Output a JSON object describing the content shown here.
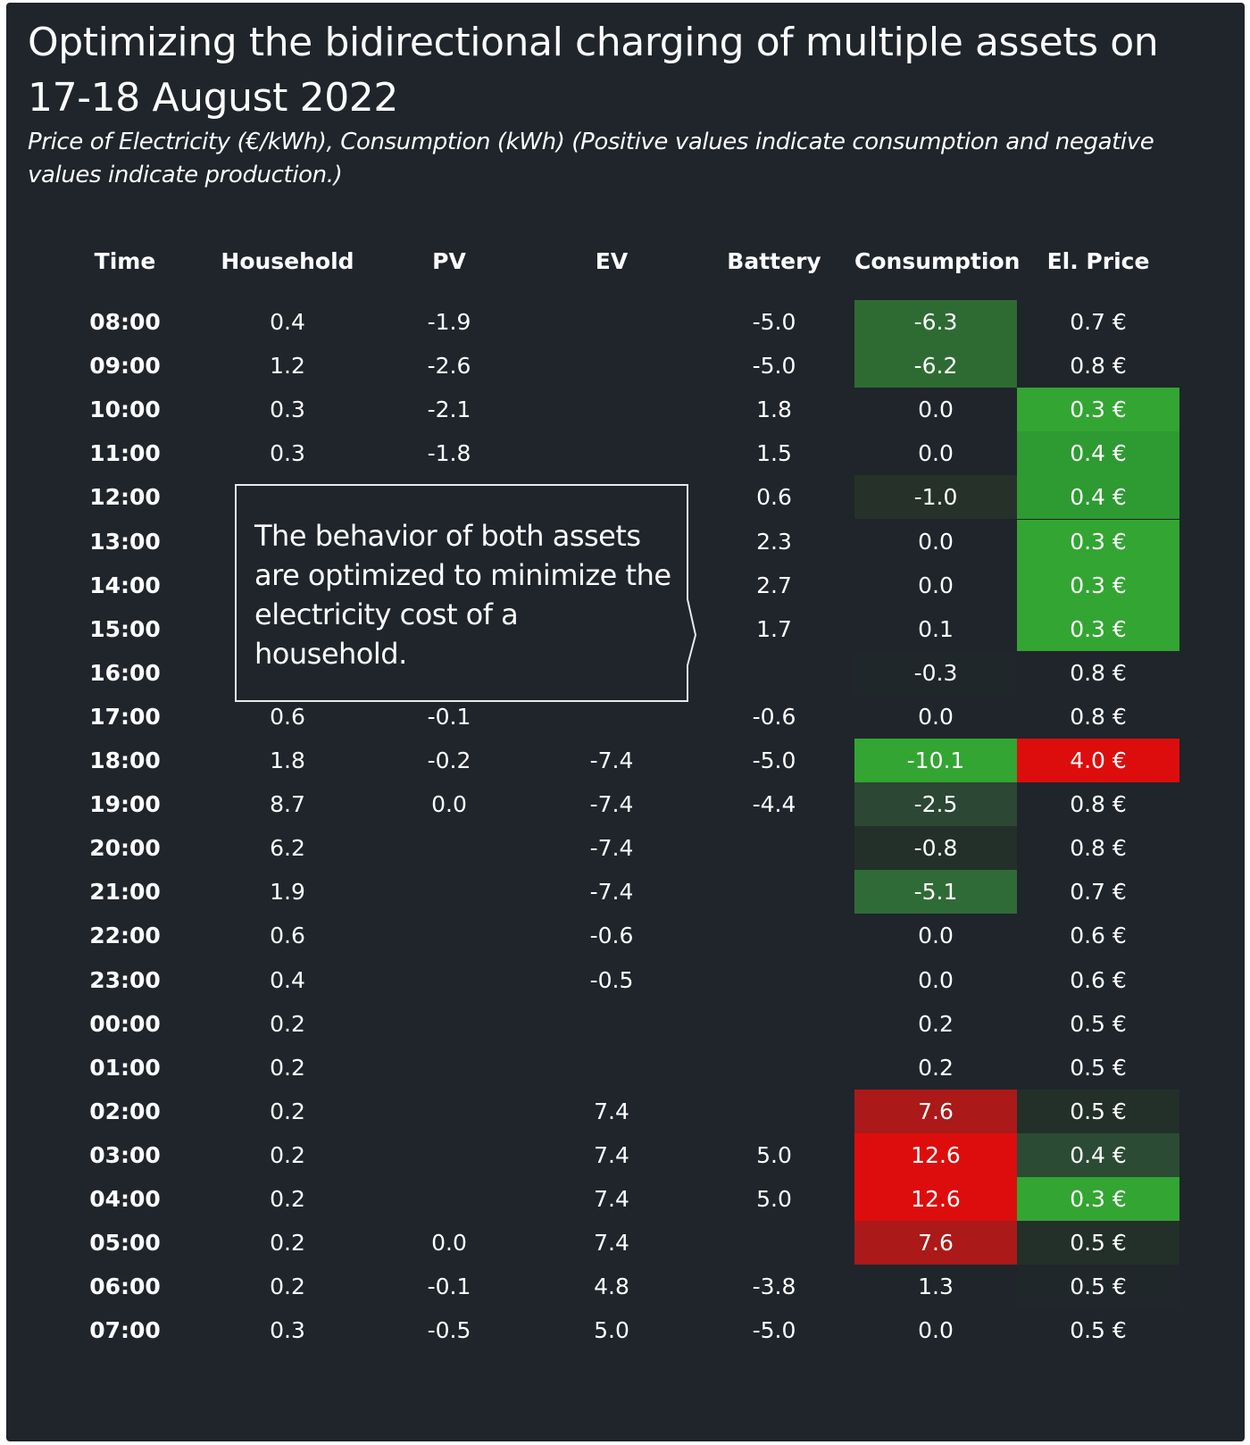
{
  "title": "Optimizing the bidirectional charging of multiple assets on 17-18 August 2022",
  "subtitle": "Price of Electricity (€/kWh), Consumption (kWh) (Positive values indicate consumption and negative values indicate production.)",
  "annotation": "The behavior of both assets are optimized to minimize the electricity cost of a household.",
  "colors": {
    "background": "#1f252b",
    "text": "#ffffff",
    "green_scale_max": "#33a532",
    "red_scale_max": "#dd0d0d"
  },
  "chart_data": {
    "type": "table",
    "title": "Optimizing the bidirectional charging of multiple assets on 17-18 August 2022",
    "columns": [
      "Time",
      "Household",
      "PV",
      "EV",
      "Battery",
      "Consumption",
      "El. Price"
    ],
    "rows": [
      [
        "08:00",
        "0.4",
        "-1.9",
        "",
        "-5.0",
        "-6.3",
        "0.7 €"
      ],
      [
        "09:00",
        "1.2",
        "-2.6",
        "",
        "-5.0",
        "-6.2",
        "0.8 €"
      ],
      [
        "10:00",
        "0.3",
        "-2.1",
        "",
        "1.8",
        "0.0",
        "0.3 €"
      ],
      [
        "11:00",
        "0.3",
        "-1.8",
        "",
        "1.5",
        "0.0",
        "0.4 €"
      ],
      [
        "12:00",
        "",
        "",
        "",
        "0.6",
        "-1.0",
        "0.4 €"
      ],
      [
        "13:00",
        "",
        "",
        "",
        "2.3",
        "0.0",
        "0.3 €"
      ],
      [
        "14:00",
        "",
        "",
        "",
        "2.7",
        "0.0",
        "0.3 €"
      ],
      [
        "15:00",
        "",
        "",
        "",
        "1.7",
        "0.1",
        "0.3 €"
      ],
      [
        "16:00",
        "",
        "",
        "",
        "",
        "-0.3",
        "0.8 €"
      ],
      [
        "17:00",
        "0.6",
        "-0.1",
        "",
        "-0.6",
        "0.0",
        "0.8 €"
      ],
      [
        "18:00",
        "1.8",
        "-0.2",
        "-7.4",
        "-5.0",
        "-10.1",
        "4.0 €"
      ],
      [
        "19:00",
        "8.7",
        "0.0",
        "-7.4",
        "-4.4",
        "-2.5",
        "0.8 €"
      ],
      [
        "20:00",
        "6.2",
        "",
        "-7.4",
        "",
        "-0.8",
        "0.8 €"
      ],
      [
        "21:00",
        "1.9",
        "",
        "-7.4",
        "",
        "-5.1",
        "0.7 €"
      ],
      [
        "22:00",
        "0.6",
        "",
        "-0.6",
        "",
        "0.0",
        "0.6 €"
      ],
      [
        "23:00",
        "0.4",
        "",
        "-0.5",
        "",
        "0.0",
        "0.6 €"
      ],
      [
        "00:00",
        "0.2",
        "",
        "",
        "",
        "0.2",
        "0.5 €"
      ],
      [
        "01:00",
        "0.2",
        "",
        "",
        "",
        "0.2",
        "0.5 €"
      ],
      [
        "02:00",
        "0.2",
        "",
        "7.4",
        "",
        "7.6",
        "0.5 €"
      ],
      [
        "03:00",
        "0.2",
        "",
        "7.4",
        "5.0",
        "12.6",
        "0.4 €"
      ],
      [
        "04:00",
        "0.2",
        "",
        "7.4",
        "5.0",
        "12.6",
        "0.3 €"
      ],
      [
        "05:00",
        "0.2",
        "0.0",
        "7.4",
        "",
        "7.6",
        "0.5 €"
      ],
      [
        "06:00",
        "0.2",
        "-0.1",
        "4.8",
        "-3.8",
        "1.3",
        "0.5 €"
      ],
      [
        "07:00",
        "0.3",
        "-0.5",
        "5.0",
        "-5.0",
        "0.0",
        "0.5 €"
      ]
    ],
    "cell_colors": {
      "Consumption": [
        "#2e6b33",
        "#2e6b33",
        "",
        "",
        "#263229",
        "",
        "",
        "",
        "#20272a",
        "",
        "#33a532",
        "#2c4733",
        "#233029",
        "#2f6b36",
        "",
        "",
        "",
        "",
        "#ab1919",
        "#dd0d0d",
        "#dd0d0d",
        "#ab1919",
        "",
        ""
      ],
      "El. Price": [
        "",
        "",
        "#33a532",
        "#2e9a32",
        "#2e9a32",
        "#33a532",
        "#33a532",
        "#33a532",
        "",
        "",
        "#dd0d0d",
        "",
        "",
        "",
        "",
        "",
        "",
        "",
        "#233029",
        "#2b4b34",
        "#33a532",
        "#233029",
        "#20272a",
        ""
      ]
    }
  }
}
